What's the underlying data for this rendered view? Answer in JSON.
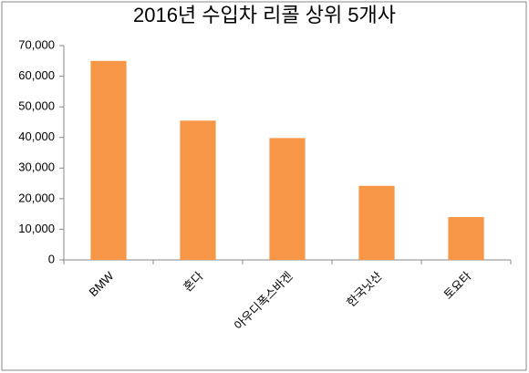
{
  "chart_data": {
    "type": "bar",
    "title": "2016년 수입차 리콜 상위 5개사",
    "categories": [
      "BMW",
      "혼다",
      "아우디폭스바겐",
      "한국닛산",
      "토요타"
    ],
    "values": [
      65000,
      45500,
      39800,
      24200,
      14000
    ],
    "color": "#f79646",
    "ylim": [
      0,
      70000
    ],
    "yticks": [
      0,
      {
        "value": 10000,
        "label": "10,000"
      },
      {
        "value": 20000,
        "label": "20,000"
      },
      {
        "value": 30000,
        "label": "30,000"
      },
      {
        "value": 40000,
        "label": "40,000"
      },
      {
        "value": 50000,
        "label": "50,000"
      },
      {
        "value": 60000,
        "label": "60,000"
      },
      {
        "value": 70000,
        "label": "70,000"
      }
    ],
    "grid": false
  }
}
